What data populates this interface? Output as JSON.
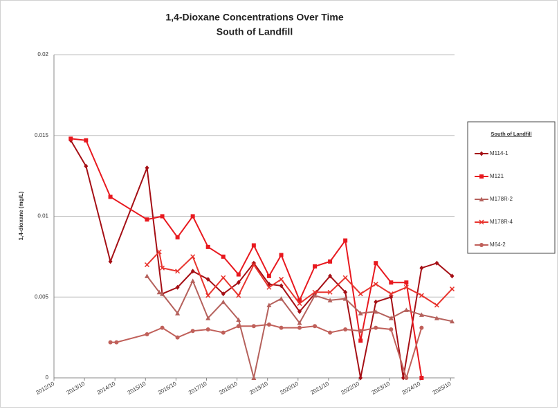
{
  "chart_data": {
    "type": "line",
    "title": "1,4-Dioxane Concentrations Over Time",
    "subtitle": "South of Landfill",
    "y_label": "1,4-dioxane (mg/L)",
    "legend_title": "South of Landfill",
    "legend": "right",
    "grid": true,
    "xlim": [
      2012.75,
      2025.88
    ],
    "xticks": [
      {
        "value": 2012.75,
        "label": "2012/10"
      },
      {
        "value": 2013.75,
        "label": "2013/10"
      },
      {
        "value": 2014.75,
        "label": "2014/10"
      },
      {
        "value": 2015.75,
        "label": "2015/10"
      },
      {
        "value": 2016.75,
        "label": "2016/10"
      },
      {
        "value": 2017.75,
        "label": "2017/10"
      },
      {
        "value": 2018.75,
        "label": "2018/10"
      },
      {
        "value": 2019.75,
        "label": "2019/10"
      },
      {
        "value": 2020.75,
        "label": "2020/10"
      },
      {
        "value": 2021.75,
        "label": "2021/10"
      },
      {
        "value": 2022.75,
        "label": "2022/10"
      },
      {
        "value": 2023.75,
        "label": "2023/10"
      },
      {
        "value": 2024.75,
        "label": "2024/10"
      },
      {
        "value": 2025.75,
        "label": "2025/10"
      }
    ],
    "ylim": [
      0,
      0.02
    ],
    "yticks": [
      0,
      0.005,
      0.01,
      0.015,
      0.02
    ],
    "series": [
      {
        "name": "M114-1",
        "color": "#a50f15",
        "marker": "diamond",
        "x": [
          2013.3,
          2013.8,
          2014.6,
          2015.8,
          2016.3,
          2016.8,
          2017.3,
          2017.8,
          2018.3,
          2018.8,
          2019.3,
          2019.8,
          2020.2,
          2020.8,
          2021.3,
          2021.8,
          2022.3,
          2022.8,
          2023.3,
          2023.8,
          2024.2,
          2024.8,
          2025.3,
          2025.8
        ],
        "values": [
          0.0147,
          0.0131,
          0.0072,
          0.013,
          0.0052,
          0.0056,
          0.0066,
          0.0061,
          0.0052,
          0.0059,
          0.0071,
          0.0058,
          0.0057,
          0.0041,
          0.0052,
          0.0063,
          0.0053,
          0,
          0.0047,
          0.005,
          0,
          0.0068,
          0.0071,
          0.0063
        ]
      },
      {
        "name": "M121",
        "color": "#e8191f",
        "marker": "square",
        "x": [
          2013.3,
          2013.8,
          2014.6,
          2015.8,
          2016.3,
          2016.8,
          2017.3,
          2017.8,
          2018.3,
          2018.8,
          2019.3,
          2019.8,
          2020.2,
          2020.8,
          2021.3,
          2021.8,
          2022.3,
          2022.8,
          2023.3,
          2023.8,
          2024.3,
          2024.8
        ],
        "values": [
          0.0148,
          0.0147,
          0.0112,
          0.0098,
          0.01,
          0.0087,
          0.01,
          0.0081,
          0.0075,
          0.0064,
          0.0082,
          0.0063,
          0.0076,
          0.0048,
          0.0069,
          0.0072,
          0.0085,
          0.0023,
          0.0071,
          0.0059,
          0.0059,
          0
        ]
      },
      {
        "name": "M178R-2",
        "color": "#b5615c",
        "marker": "triangle",
        "x": [
          2015.8,
          2016.2,
          2016.3,
          2016.8,
          2017.3,
          2017.8,
          2018.3,
          2018.8,
          2019.3,
          2019.8,
          2020.2,
          2020.8,
          2021.3,
          2021.8,
          2022.3,
          2022.8,
          2023.3,
          2023.8,
          2024.3,
          2024.8,
          2025.3,
          2025.8
        ],
        "values": [
          0.0063,
          0.0053,
          0.0052,
          0.004,
          0.006,
          0.0037,
          0.0047,
          0.0036,
          0,
          0.0045,
          0.0049,
          0.0034,
          0.0051,
          0.0048,
          0.0049,
          0.004,
          0.0041,
          0.0037,
          0.0042,
          0.0039,
          0.0037,
          0.0035
        ]
      },
      {
        "name": "M178R-4",
        "color": "#e8342e",
        "marker": "x",
        "x": [
          2015.8,
          2016.2,
          2016.3,
          2016.8,
          2017.3,
          2017.8,
          2018.3,
          2018.8,
          2019.3,
          2019.8,
          2020.2,
          2020.8,
          2021.3,
          2021.8,
          2022.3,
          2022.8,
          2023.3,
          2023.8,
          2024.3,
          2024.8,
          2025.3,
          2025.8
        ],
        "values": [
          0.007,
          0.0078,
          0.0068,
          0.0066,
          0.0075,
          0.0051,
          0.0062,
          0.0051,
          0.007,
          0.0056,
          0.0061,
          0.0046,
          0.0053,
          0.0053,
          0.0062,
          0.0052,
          0.0058,
          0.0052,
          0.0056,
          0.0051,
          0.0045,
          0.0055
        ]
      },
      {
        "name": "M64-2",
        "color": "#c0605a",
        "marker": "circle",
        "x": [
          2014.6,
          2014.8,
          2015.8,
          2016.3,
          2016.8,
          2017.3,
          2017.8,
          2018.3,
          2018.8,
          2019.3,
          2019.8,
          2020.2,
          2020.8,
          2021.3,
          2021.8,
          2022.3,
          2022.8,
          2023.3,
          2023.8,
          2024.3,
          2024.8
        ],
        "values": [
          0.0022,
          0.0022,
          0.0027,
          0.0031,
          0.0025,
          0.0029,
          0.003,
          0.0028,
          0.0032,
          0.0032,
          0.0033,
          0.0031,
          0.0031,
          0.0032,
          0.0028,
          0.003,
          0.0029,
          0.0031,
          0.003,
          0,
          0.0031
        ]
      }
    ]
  }
}
